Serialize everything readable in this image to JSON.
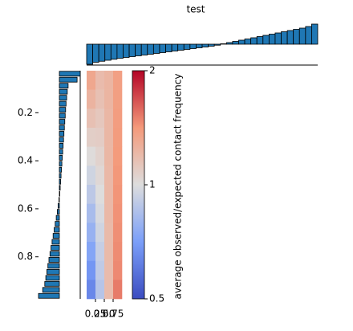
{
  "chart_data": [
    {
      "type": "bar",
      "title": "test",
      "color": "#1f77b4",
      "ylim": [
        -1,
        1
      ],
      "values": [
        -1.0,
        -0.9,
        -0.85,
        -0.8,
        -0.75,
        -0.7,
        -0.66,
        -0.62,
        -0.58,
        -0.54,
        -0.5,
        -0.46,
        -0.42,
        -0.38,
        -0.34,
        -0.3,
        -0.26,
        -0.22,
        -0.18,
        -0.14,
        -0.1,
        -0.05,
        0.02,
        0.08,
        0.14,
        0.2,
        0.26,
        0.32,
        0.38,
        0.44,
        0.5,
        0.56,
        0.62,
        0.68,
        0.74,
        0.8,
        0.88,
        1.0
      ]
    },
    {
      "type": "barh",
      "color": "#1f77b4",
      "xlim": [
        -1,
        1
      ],
      "ylim": [
        0.025,
        0.975
      ],
      "yticks": [
        0.2,
        0.4,
        0.6,
        0.8
      ],
      "y": [
        0.0375,
        0.0625,
        0.0875,
        0.1125,
        0.1375,
        0.1625,
        0.1875,
        0.2125,
        0.2375,
        0.2625,
        0.2875,
        0.3125,
        0.3375,
        0.3625,
        0.3875,
        0.4125,
        0.4375,
        0.4625,
        0.4875,
        0.5125,
        0.5375,
        0.5625,
        0.5875,
        0.6125,
        0.6375,
        0.6625,
        0.6875,
        0.7125,
        0.7375,
        0.7625,
        0.7875,
        0.8125,
        0.8375,
        0.8625,
        0.8875,
        0.9125,
        0.9375,
        0.9625
      ],
      "values": [
        1.0,
        0.85,
        0.42,
        0.38,
        0.35,
        0.32,
        0.3,
        0.28,
        0.26,
        0.24,
        0.22,
        0.2,
        0.18,
        0.16,
        0.14,
        0.12,
        0.1,
        0.08,
        0.06,
        0.04,
        0.02,
        -0.02,
        -0.06,
        -0.1,
        -0.15,
        -0.2,
        -0.25,
        -0.3,
        -0.35,
        -0.4,
        -0.45,
        -0.5,
        -0.55,
        -0.6,
        -0.65,
        -0.7,
        -0.8,
        -1.0
      ]
    },
    {
      "type": "heatmap",
      "cmap": "coolwarm",
      "xlim": [
        0,
        1
      ],
      "ylim": [
        0.025,
        0.975
      ],
      "xticks": [
        0.25,
        {
          "value": 0.5,
          "label": "0.50"
        },
        0.75
      ],
      "z": [
        [
          1.32,
          1.19,
          1.23,
          1.37
        ],
        [
          1.24,
          1.16,
          1.23,
          1.38
        ],
        [
          1.16,
          1.12,
          1.22,
          1.39
        ],
        [
          1.08,
          1.09,
          1.22,
          1.4
        ],
        [
          1.01,
          1.06,
          1.22,
          1.41
        ],
        [
          0.95,
          1.03,
          1.21,
          1.42
        ],
        [
          0.89,
          1.0,
          1.21,
          1.43
        ],
        [
          0.83,
          0.98,
          1.21,
          1.44
        ],
        [
          0.78,
          0.95,
          1.2,
          1.45
        ],
        [
          0.73,
          0.92,
          1.2,
          1.46
        ],
        [
          0.68,
          0.9,
          1.19,
          1.47
        ],
        [
          0.64,
          0.87,
          1.19,
          1.52
        ]
      ]
    },
    {
      "type": "colorbar",
      "cmap": "coolwarm",
      "log": true,
      "ylim": [
        0.5,
        2
      ],
      "yticks": [
        0.5,
        1,
        2
      ],
      "ylabel": "average observed/expected contact frequency"
    }
  ]
}
